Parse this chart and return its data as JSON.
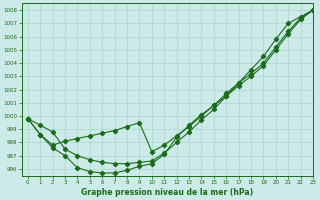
{
  "title": "Graphe pression niveau de la mer (hPa)",
  "bg_color": "#cceae7",
  "grid_color": "#aad4d0",
  "line_color": "#1a6b1a",
  "xlim": [
    -0.5,
    23
  ],
  "ylim": [
    995.5,
    1008.5
  ],
  "xticks": [
    0,
    1,
    2,
    3,
    4,
    5,
    6,
    7,
    8,
    9,
    10,
    11,
    12,
    13,
    14,
    15,
    16,
    17,
    18,
    19,
    20,
    21,
    22,
    23
  ],
  "yticks": [
    996,
    997,
    998,
    999,
    1000,
    1001,
    1002,
    1003,
    1004,
    1005,
    1006,
    1007,
    1008
  ],
  "line1_x": [
    0,
    1,
    2,
    3,
    4,
    5,
    6,
    7,
    8,
    9,
    10,
    11,
    12,
    13,
    14,
    15,
    16,
    17,
    18,
    19,
    20,
    21,
    22,
    23
  ],
  "line1_y": [
    999.8,
    998.6,
    997.6,
    997.0,
    996.1,
    995.8,
    995.7,
    995.7,
    995.9,
    996.2,
    996.4,
    997.1,
    998.4,
    999.3,
    1000.1,
    1000.8,
    1001.5,
    1002.3,
    1003.0,
    1003.8,
    1005.0,
    1006.2,
    1007.3,
    1008.0
  ],
  "line2_x": [
    0,
    1,
    2,
    3,
    4,
    5,
    6,
    7,
    8,
    9,
    10,
    11,
    12,
    13,
    14,
    15,
    16,
    17,
    18,
    19,
    20,
    21,
    22,
    23
  ],
  "line2_y": [
    999.8,
    998.6,
    997.8,
    998.1,
    998.3,
    998.5,
    998.7,
    998.9,
    999.2,
    999.5,
    997.3,
    997.8,
    998.5,
    999.2,
    1000.0,
    1000.8,
    1001.7,
    1002.5,
    1003.2,
    1004.0,
    1005.2,
    1006.4,
    1007.4,
    1008.0
  ],
  "line3_x": [
    0,
    1,
    2,
    3,
    4,
    5,
    6,
    7,
    8,
    9,
    10,
    11,
    12,
    13,
    14,
    15,
    16,
    17,
    18,
    19,
    20,
    21,
    22,
    23
  ],
  "line3_y": [
    999.8,
    999.3,
    998.8,
    997.5,
    997.0,
    996.7,
    996.5,
    996.4,
    996.4,
    996.5,
    996.6,
    997.2,
    998.0,
    998.8,
    999.7,
    1000.5,
    1001.5,
    1002.5,
    1003.5,
    1004.5,
    1005.8,
    1007.0,
    1007.5,
    1008.0
  ]
}
